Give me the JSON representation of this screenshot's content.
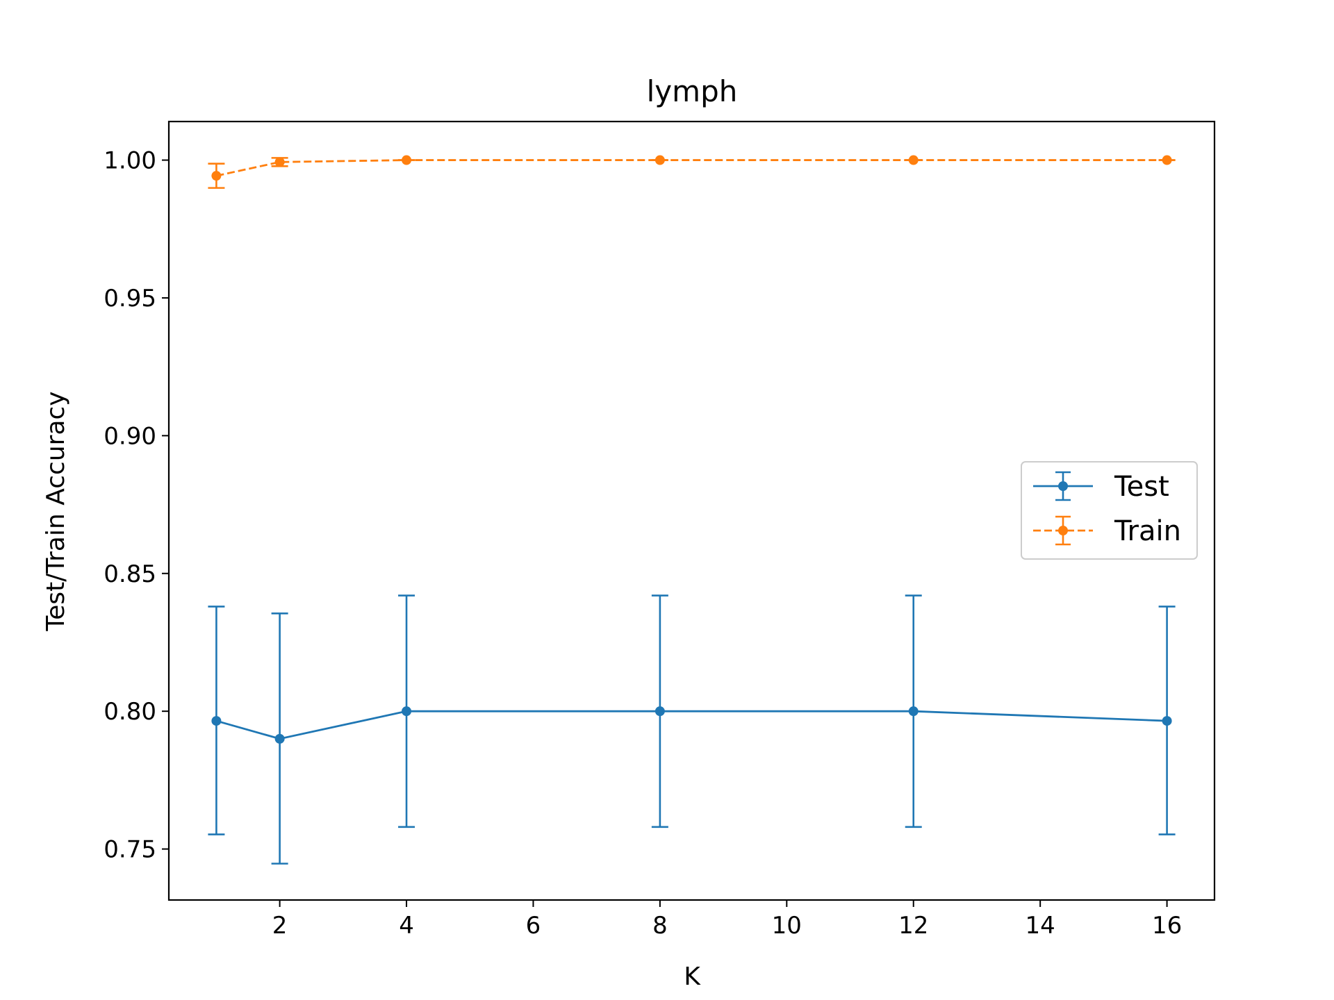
{
  "chart_data": {
    "type": "line",
    "title": "lymph",
    "xlabel": "K",
    "ylabel": "Test/Train Accuracy",
    "x": [
      1,
      2,
      4,
      8,
      12,
      16
    ],
    "xlim": [
      0.25,
      16.75
    ],
    "ylim": [
      0.7315,
      1.014
    ],
    "xticks": [
      2,
      4,
      6,
      8,
      10,
      12,
      14,
      16
    ],
    "yticks": [
      0.75,
      0.8,
      0.85,
      0.9,
      0.95,
      1.0
    ],
    "ytick_labels": [
      "0.75",
      "0.80",
      "0.85",
      "0.90",
      "0.95",
      "1.00"
    ],
    "grid": false,
    "legend_position": "center-right",
    "series": [
      {
        "name": "Test",
        "color": "#1f77b4",
        "linestyle": "solid",
        "values": [
          0.7965,
          0.79,
          0.8,
          0.8,
          0.8,
          0.7965
        ],
        "err_low": [
          0.7553,
          0.7447,
          0.758,
          0.758,
          0.758,
          0.7553
        ],
        "err_high": [
          0.838,
          0.8355,
          0.842,
          0.842,
          0.842,
          0.838
        ]
      },
      {
        "name": "Train",
        "color": "#ff7f0e",
        "linestyle": "dashed",
        "values": [
          0.9943,
          0.9993,
          1.0,
          1.0,
          1.0,
          1.0
        ],
        "err_low": [
          0.9899,
          0.9978,
          1.0,
          1.0,
          1.0,
          1.0
        ],
        "err_high": [
          0.9987,
          1.0008,
          1.0,
          1.0,
          1.0,
          1.0
        ]
      }
    ]
  }
}
